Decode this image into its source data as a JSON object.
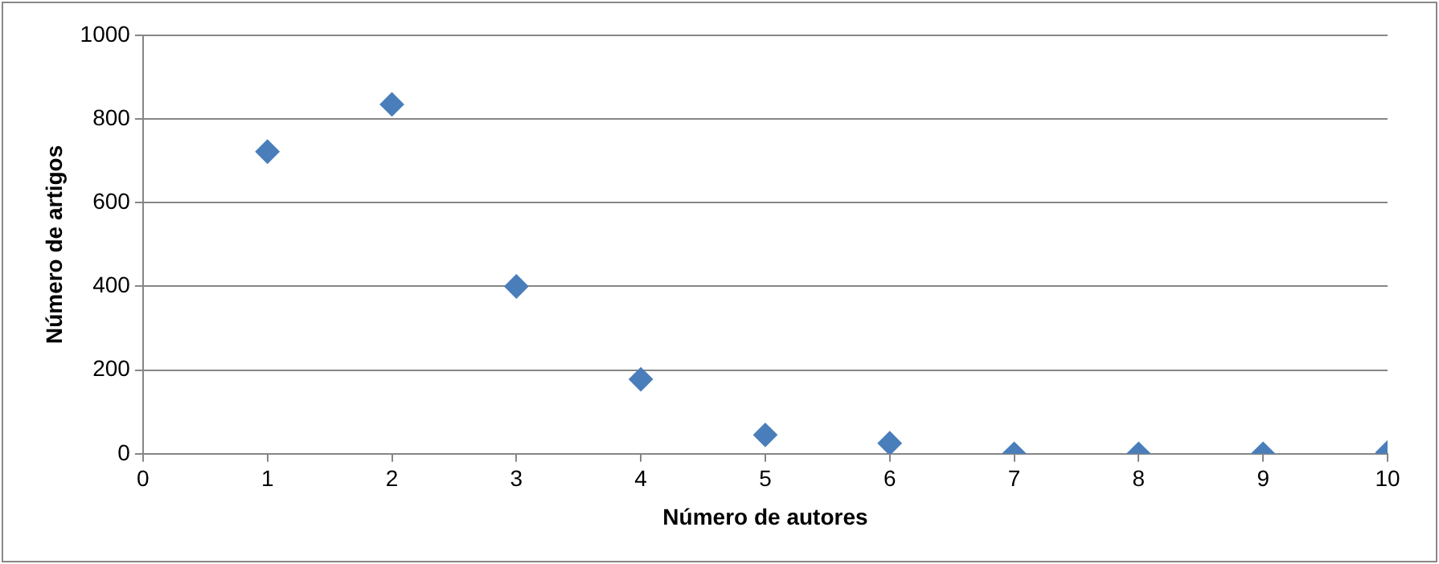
{
  "chart_data": {
    "type": "scatter",
    "xlabel": "Número de autores",
    "ylabel": "Número de artigos",
    "x": [
      1,
      2,
      3,
      4,
      5,
      6,
      7,
      8,
      9,
      10
    ],
    "series": [
      {
        "color": "#4a7ebb",
        "values": [
          722,
          835,
          400,
          178,
          45,
          25,
          0,
          0,
          0,
          3
        ]
      }
    ],
    "xlim": [
      0,
      10
    ],
    "xticks": [
      0,
      1,
      2,
      3,
      4,
      5,
      6,
      7,
      8,
      9,
      10
    ],
    "ylim": [
      0,
      1000
    ],
    "yticks": [
      0,
      200,
      400,
      600,
      800,
      1000
    ],
    "grid": "y",
    "legend": false,
    "marker": "diamond"
  }
}
